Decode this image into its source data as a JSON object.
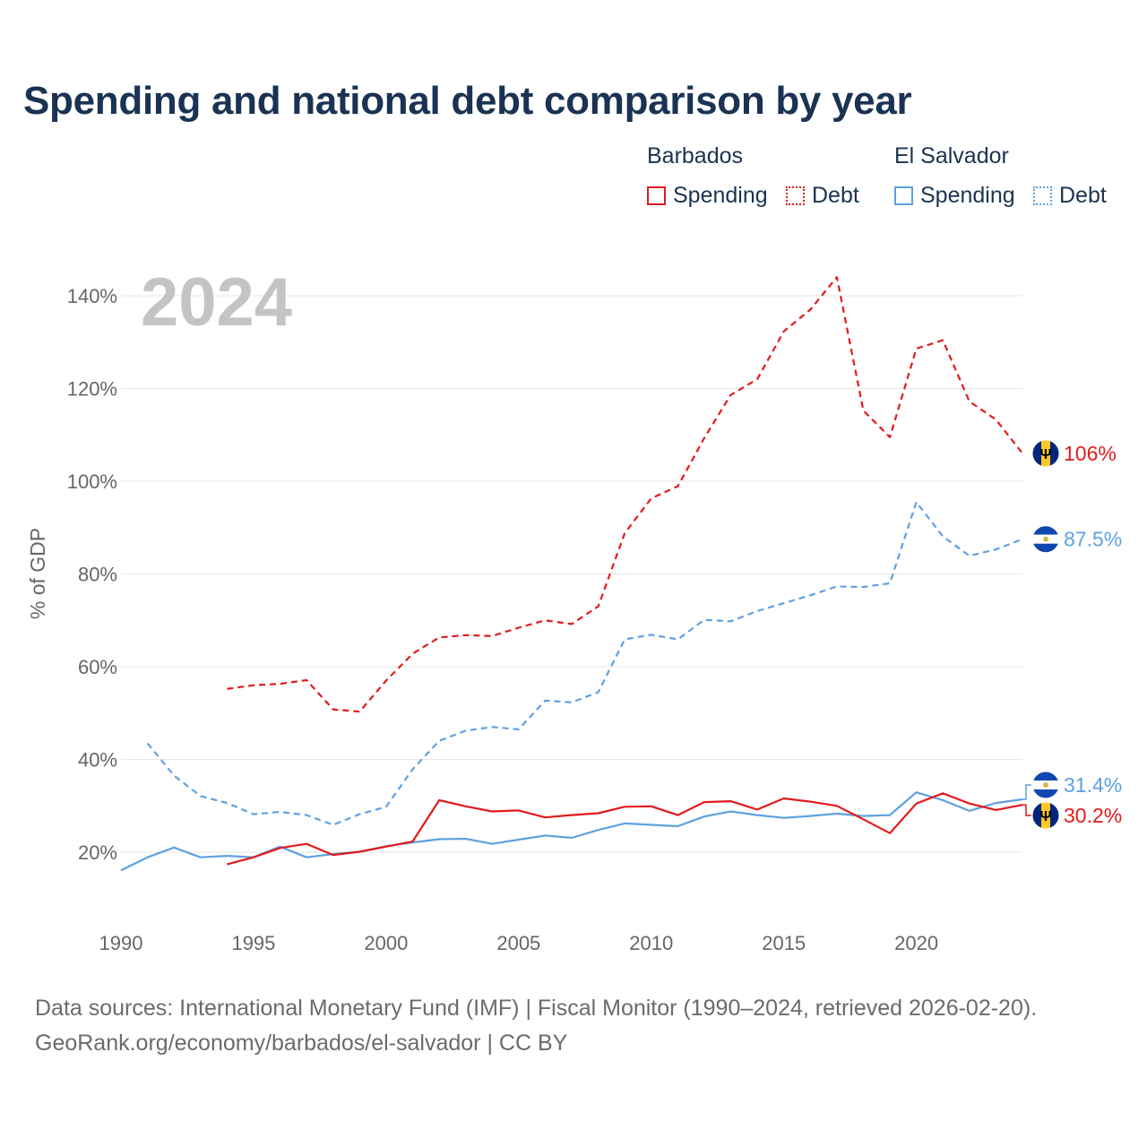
{
  "title": "Spending and national debt comparison by year",
  "legend": {
    "groups": [
      {
        "country": "Barbados",
        "items": [
          "Spending",
          "Debt"
        ]
      },
      {
        "country": "El Salvador",
        "items": [
          "Spending",
          "Debt"
        ]
      }
    ]
  },
  "colors": {
    "barbados": "#e31a1c",
    "el_salvador": "#5ea1e0",
    "title": "#1b3352",
    "grid": "#e6e6e6"
  },
  "footer": {
    "line1": "Data sources: International Monetary Fund (IMF) | Fiscal Monitor (1990–2024, retrieved 2026-02-20).",
    "line2": "GeoRank.org/economy/barbados/el-salvador | CC BY"
  },
  "chart_data": {
    "type": "line",
    "year_label": "2024",
    "ylabel": "% of GDP",
    "xlim": [
      1990,
      2024
    ],
    "ylim": [
      10,
      148
    ],
    "x_ticks": [
      1990,
      1995,
      2000,
      2005,
      2010,
      2015,
      2020
    ],
    "y_ticks": [
      20,
      40,
      60,
      80,
      100,
      120,
      140
    ],
    "y_tick_labels": [
      "20%",
      "40%",
      "60%",
      "80%",
      "100%",
      "120%",
      "140%"
    ],
    "series": [
      {
        "name": "Barbados Debt",
        "country": "Barbados",
        "color_key": "barbados",
        "dash": true,
        "end_label": "106%",
        "x": [
          1994,
          1995,
          1996,
          1997,
          1998,
          1999,
          2000,
          2001,
          2002,
          2003,
          2004,
          2005,
          2006,
          2007,
          2008,
          2009,
          2010,
          2011,
          2012,
          2013,
          2014,
          2015,
          2016,
          2017,
          2018,
          2019,
          2020,
          2021,
          2022,
          2023,
          2024
        ],
        "values": [
          55.2,
          56.0,
          56.3,
          57.1,
          50.8,
          50.3,
          57.0,
          62.8,
          66.3,
          66.8,
          66.6,
          68.4,
          70.0,
          69.2,
          73.0,
          88.8,
          96.3,
          98.9,
          109.3,
          118.6,
          122.0,
          132.3,
          137.0,
          144.0,
          115.2,
          109.5,
          128.6,
          130.4,
          117.2,
          113.3,
          106.0
        ]
      },
      {
        "name": "El Salvador Debt",
        "country": "El Salvador",
        "color_key": "el_salvador",
        "dash": true,
        "end_label": "87.5%",
        "x": [
          1991,
          1992,
          1993,
          1994,
          1995,
          1996,
          1997,
          1998,
          1999,
          2000,
          2001,
          2002,
          2003,
          2004,
          2005,
          2006,
          2007,
          2008,
          2009,
          2010,
          2011,
          2012,
          2013,
          2014,
          2015,
          2016,
          2017,
          2018,
          2019,
          2020,
          2021,
          2022,
          2023,
          2024
        ],
        "values": [
          43.5,
          36.5,
          32.1,
          30.6,
          28.2,
          28.7,
          28.0,
          25.9,
          28.2,
          29.8,
          37.9,
          44.0,
          46.2,
          47.0,
          46.5,
          52.7,
          52.3,
          54.5,
          65.9,
          66.9,
          65.9,
          70.1,
          69.8,
          72.0,
          73.7,
          75.4,
          77.3,
          77.2,
          78.0,
          95.5,
          88.1,
          83.9,
          85.3,
          87.5
        ]
      },
      {
        "name": "El Salvador Spending",
        "country": "El Salvador",
        "color_key": "el_salvador",
        "dash": false,
        "end_label": "31.4%",
        "x": [
          1990,
          1991,
          1992,
          1993,
          1994,
          1995,
          1996,
          1997,
          1998,
          1999,
          2000,
          2001,
          2002,
          2003,
          2004,
          2005,
          2006,
          2007,
          2008,
          2009,
          2010,
          2011,
          2012,
          2013,
          2014,
          2015,
          2016,
          2017,
          2018,
          2019,
          2020,
          2021,
          2022,
          2023,
          2024
        ],
        "values": [
          16.1,
          18.9,
          21.0,
          18.9,
          19.2,
          18.9,
          21.2,
          18.9,
          19.6,
          20.1,
          21.3,
          22.1,
          22.8,
          22.9,
          21.8,
          22.7,
          23.6,
          23.1,
          24.8,
          26.2,
          25.9,
          25.6,
          27.7,
          28.8,
          28.0,
          27.4,
          27.8,
          28.3,
          27.8,
          28.0,
          32.9,
          31.2,
          28.9,
          30.6,
          31.4
        ]
      },
      {
        "name": "Barbados Spending",
        "country": "Barbados",
        "color_key": "barbados",
        "dash": false,
        "end_label": "30.2%",
        "x": [
          1994,
          1995,
          1996,
          1997,
          1998,
          1999,
          2000,
          2001,
          2002,
          2003,
          2004,
          2005,
          2006,
          2007,
          2008,
          2009,
          2010,
          2011,
          2012,
          2013,
          2014,
          2015,
          2016,
          2017,
          2018,
          2019,
          2020,
          2021,
          2022,
          2023,
          2024
        ],
        "values": [
          17.4,
          18.9,
          20.9,
          21.8,
          19.4,
          20.1,
          21.2,
          22.3,
          31.2,
          29.9,
          28.8,
          29.0,
          27.5,
          28.0,
          28.4,
          29.8,
          29.9,
          28.0,
          30.8,
          31.0,
          29.2,
          31.6,
          30.9,
          30.0,
          27.1,
          24.1,
          30.5,
          32.7,
          30.5,
          29.1,
          30.2
        ]
      }
    ]
  }
}
